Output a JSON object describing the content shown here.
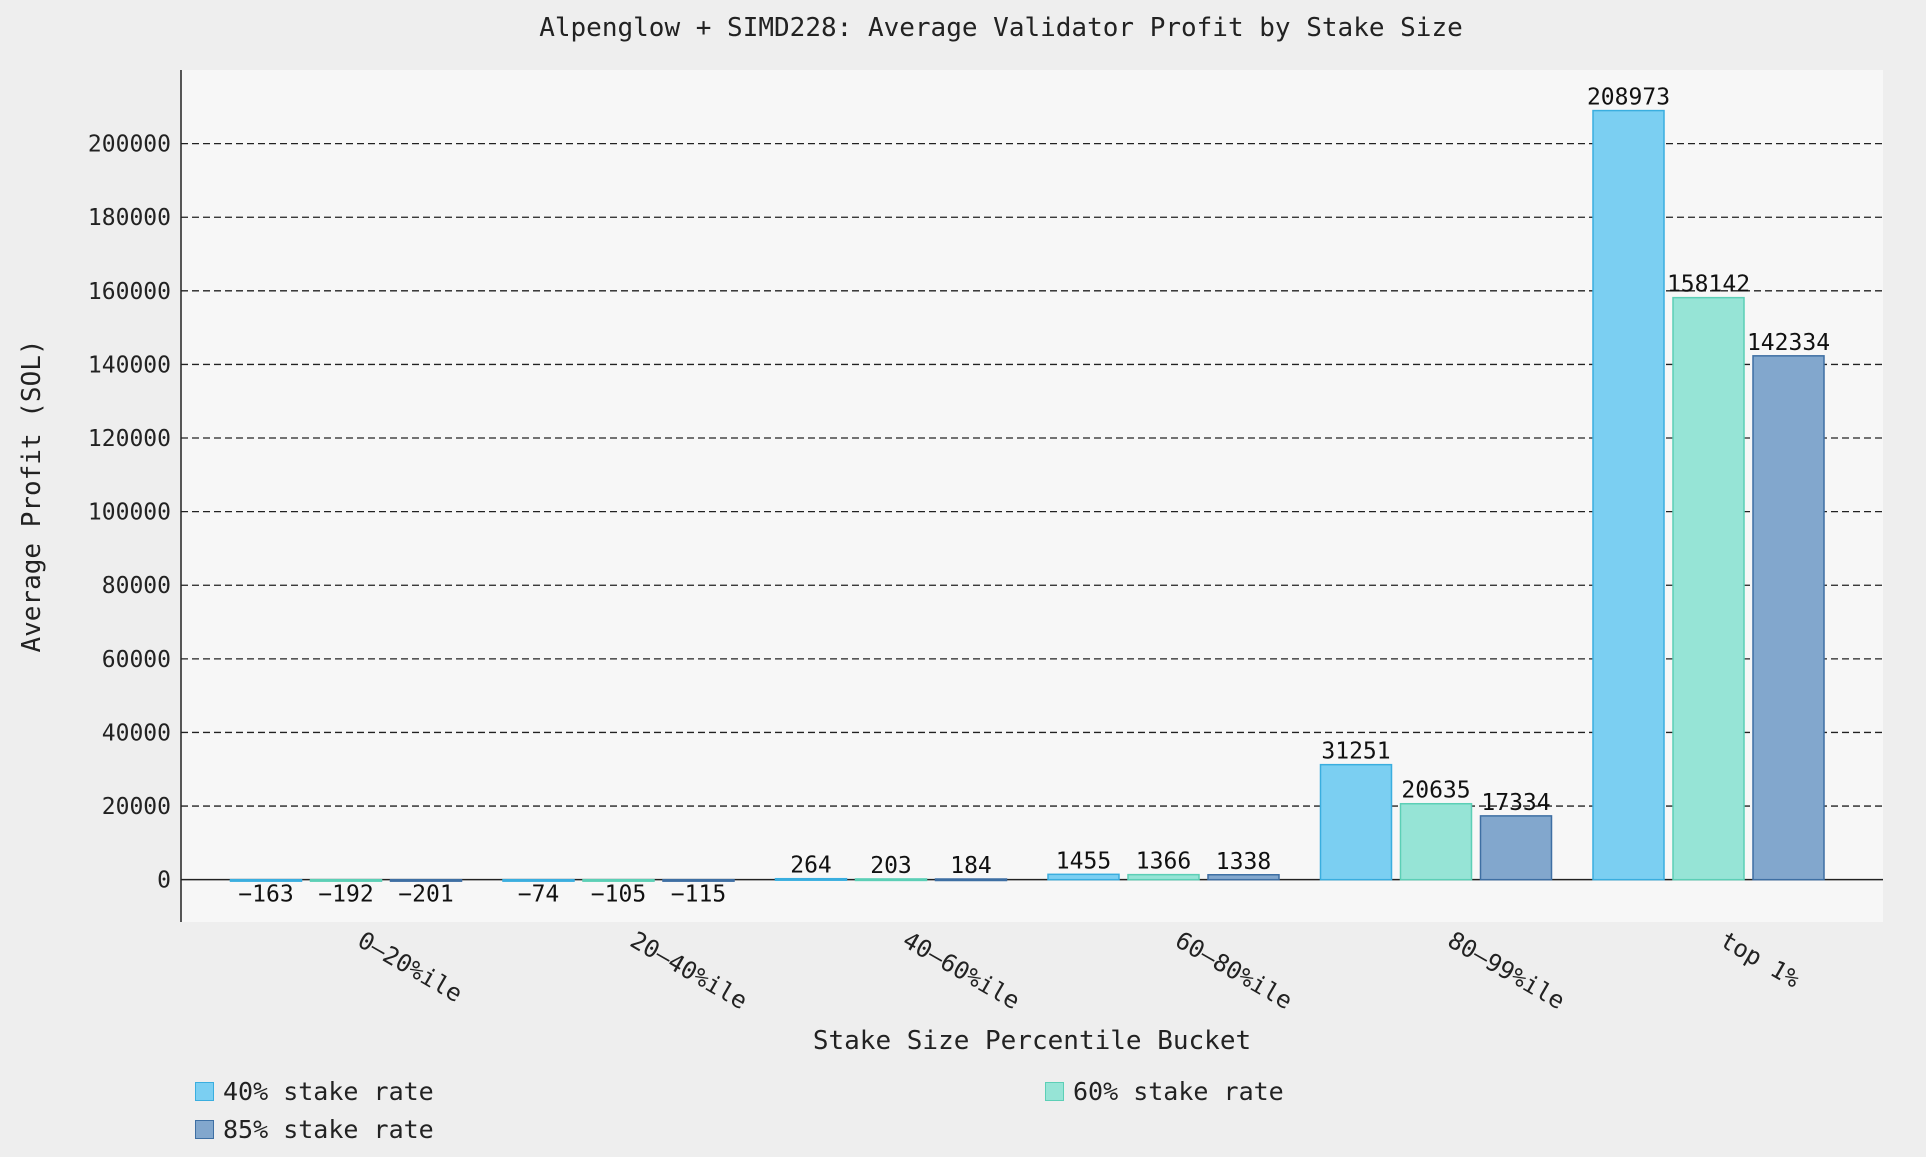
{
  "chart_data": {
    "type": "bar",
    "title": "Alpenglow + SIMD228: Average Validator Profit by Stake Size",
    "xlabel": "Stake Size Percentile Bucket",
    "ylabel": "Average Profit (SOL)",
    "categories": [
      "0–20%ile",
      "20–40%ile",
      "40–60%ile",
      "60–80%ile",
      "80–99%ile",
      "top 1%"
    ],
    "series": [
      {
        "name": "40% stake rate",
        "color": "#7bcff2",
        "edge": "#3aaedf",
        "values": [
          -163,
          -74,
          264,
          1455,
          31251,
          208973
        ],
        "labels": [
          "−163",
          "−74",
          "264",
          "1455",
          "31251",
          "208973"
        ]
      },
      {
        "name": "60% stake rate",
        "color": "#96e4d6",
        "edge": "#5ccfb6",
        "values": [
          -192,
          -105,
          203,
          1366,
          20635,
          158142
        ],
        "labels": [
          "−192",
          "−105",
          "203",
          "1366",
          "20635",
          "158142"
        ]
      },
      {
        "name": "85% stake rate",
        "color": "#82a7cd",
        "edge": "#3e6fa3",
        "values": [
          -201,
          -115,
          184,
          1338,
          17334,
          142334
        ],
        "labels": [
          "−201",
          "−115",
          "184",
          "1338",
          "17334",
          "142334"
        ]
      }
    ],
    "ylim": [
      -11500,
      220000
    ],
    "yticks": [
      0,
      20000,
      40000,
      60000,
      80000,
      100000,
      120000,
      140000,
      160000,
      180000,
      200000
    ],
    "ytick_labels": [
      "0",
      "20000",
      "40000",
      "60000",
      "80000",
      "100000",
      "120000",
      "140000",
      "160000",
      "180000",
      "200000"
    ],
    "grid": true,
    "legend_position": "bottom"
  }
}
